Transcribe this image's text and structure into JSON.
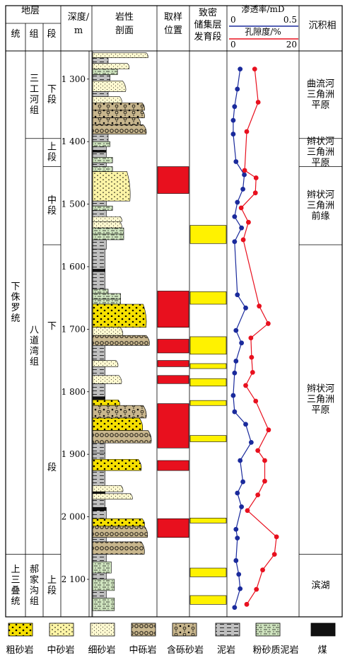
{
  "headers": {
    "stratum": "地层",
    "system": "统",
    "group": "组",
    "member": "段",
    "depth_line1": "深度/",
    "depth_line2": "m",
    "lithology_line1": "岩性",
    "lithology_line2": "剖面",
    "sampling_line1": "取样",
    "sampling_line2": "位置",
    "reservoir_line1": "致密",
    "reservoir_line2": "储集层",
    "reservoir_line3": "发育段",
    "permeability_label": "渗透率/mD",
    "permeability_min": "0",
    "permeability_max": "0.5",
    "porosity_label": "孔隙度/%",
    "porosity_min": "0",
    "porosity_max": "20",
    "facies": "沉积相"
  },
  "systems": [
    {
      "label": "下侏罗统",
      "top": 1255,
      "bottom": 2060
    },
    {
      "label": "上三叠统",
      "top": 2060,
      "bottom": 2160
    }
  ],
  "groups": [
    {
      "label": "三工河组",
      "top": 1255,
      "bottom": 1395
    },
    {
      "label": "八道湾组",
      "top": 1395,
      "bottom": 2060
    },
    {
      "label": "郝家沟组",
      "top": 2060,
      "bottom": 2160
    }
  ],
  "members": [
    {
      "label": "下段",
      "top": 1255,
      "bottom": 1395
    },
    {
      "label": "上段",
      "top": 1395,
      "bottom": 1440
    },
    {
      "label": "中段",
      "top": 1440,
      "bottom": 1565
    },
    {
      "label": "下段",
      "top": 1565,
      "bottom": 2060
    },
    {
      "label": "上段",
      "top": 2060,
      "bottom": 2160
    }
  ],
  "depth_ticks": [
    "1 300",
    "1 400",
    "1 500",
    "1 600",
    "1 700",
    "1 800",
    "1 900",
    "2 000",
    "2 100"
  ],
  "depth_tick_values": [
    1300,
    1400,
    1500,
    1600,
    1700,
    1800,
    1900,
    2000,
    2100
  ],
  "facies": [
    {
      "label": "曲流河三角洲平原",
      "top": 1255,
      "bottom": 1395
    },
    {
      "label": "辫状河三角洲平原",
      "top": 1395,
      "bottom": 1440
    },
    {
      "label": "辫状河三角洲前缘",
      "top": 1440,
      "bottom": 1565
    },
    {
      "label": "辫状河三角洲平原",
      "top": 1565,
      "bottom": 2060
    },
    {
      "label": "滨湖",
      "top": 2060,
      "bottom": 2160
    }
  ],
  "sampling_intervals": [
    [
      1440,
      1483
    ],
    [
      1639,
      1697
    ],
    [
      1716,
      1738
    ],
    [
      1750,
      1760
    ],
    [
      1774,
      1787
    ],
    [
      1819,
      1890
    ],
    [
      1910,
      1926
    ],
    [
      2003,
      2033
    ]
  ],
  "reservoir_intervals": [
    [
      1534,
      1563
    ],
    [
      1640,
      1660
    ],
    [
      1712,
      1740
    ],
    [
      1755,
      1763
    ],
    [
      1779,
      1791
    ],
    [
      1814,
      1822
    ],
    [
      1870,
      1880
    ],
    [
      2002,
      2010
    ],
    [
      2082,
      2096
    ],
    [
      2126,
      2140
    ]
  ],
  "lithology_beds": [
    {
      "type": "fine",
      "top": 1258,
      "bottom": 1266,
      "width": 0.9
    },
    {
      "type": "mud",
      "top": 1266,
      "bottom": 1275,
      "width": 0.25
    },
    {
      "type": "fine",
      "top": 1275,
      "bottom": 1284,
      "width": 0.6
    },
    {
      "type": "silt",
      "top": 1284,
      "bottom": 1293,
      "width": 0.4
    },
    {
      "type": "mud",
      "top": 1293,
      "bottom": 1303,
      "width": 0.28
    },
    {
      "type": "fine",
      "top": 1303,
      "bottom": 1320,
      "width": 0.55
    },
    {
      "type": "mud",
      "top": 1320,
      "bottom": 1328,
      "width": 0.25
    },
    {
      "type": "fine",
      "top": 1328,
      "bottom": 1338,
      "width": 0.48
    },
    {
      "type": "pebbly",
      "top": 1338,
      "bottom": 1350,
      "width": 0.85
    },
    {
      "type": "pebbly",
      "top": 1350,
      "bottom": 1362,
      "width": 0.85
    },
    {
      "type": "pebbly",
      "top": 1362,
      "bottom": 1373,
      "width": 0.78
    },
    {
      "type": "conglom",
      "top": 1373,
      "bottom": 1388,
      "width": 0.88
    },
    {
      "type": "mud",
      "top": 1388,
      "bottom": 1400,
      "width": 0.25
    },
    {
      "type": "silt",
      "top": 1400,
      "bottom": 1408,
      "width": 0.28
    },
    {
      "type": "mud",
      "top": 1408,
      "bottom": 1414,
      "width": 0.22
    },
    {
      "type": "coal",
      "top": 1414,
      "bottom": 1417,
      "width": 0.22
    },
    {
      "type": "mud",
      "top": 1417,
      "bottom": 1425,
      "width": 0.22
    },
    {
      "type": "silt",
      "top": 1425,
      "bottom": 1434,
      "width": 0.32
    },
    {
      "type": "mud",
      "top": 1434,
      "bottom": 1440,
      "width": 0.22
    },
    {
      "type": "silt",
      "top": 1440,
      "bottom": 1448,
      "width": 0.32
    },
    {
      "type": "medium",
      "top": 1448,
      "bottom": 1495,
      "width": 0.62
    },
    {
      "type": "mud",
      "top": 1495,
      "bottom": 1503,
      "width": 0.22
    },
    {
      "type": "silt",
      "top": 1503,
      "bottom": 1510,
      "width": 0.32
    },
    {
      "type": "mud",
      "top": 1510,
      "bottom": 1520,
      "width": 0.22
    },
    {
      "type": "fine",
      "top": 1520,
      "bottom": 1528,
      "width": 0.48
    },
    {
      "type": "fine",
      "top": 1528,
      "bottom": 1538,
      "width": 0.48
    },
    {
      "type": "silt",
      "top": 1538,
      "bottom": 1548,
      "width": 0.5
    },
    {
      "type": "silt",
      "top": 1548,
      "bottom": 1557,
      "width": 0.5
    },
    {
      "type": "mud",
      "top": 1557,
      "bottom": 1572,
      "width": 0.22
    },
    {
      "type": "mud",
      "top": 1572,
      "bottom": 1604,
      "width": 0.2
    },
    {
      "type": "coal",
      "top": 1604,
      "bottom": 1608,
      "width": 0.2
    },
    {
      "type": "mud",
      "top": 1608,
      "bottom": 1636,
      "width": 0.2
    },
    {
      "type": "silt",
      "top": 1636,
      "bottom": 1643,
      "width": 0.25
    },
    {
      "type": "silt",
      "top": 1643,
      "bottom": 1652,
      "width": 0.45
    },
    {
      "type": "silt",
      "top": 1652,
      "bottom": 1660,
      "width": 0.45
    },
    {
      "type": "coarse",
      "top": 1660,
      "bottom": 1697,
      "width": 0.88
    },
    {
      "type": "fine",
      "top": 1697,
      "bottom": 1710,
      "width": 0.5
    },
    {
      "type": "conglom",
      "top": 1710,
      "bottom": 1726,
      "width": 0.93
    },
    {
      "type": "mud",
      "top": 1726,
      "bottom": 1750,
      "width": 0.2
    },
    {
      "type": "fine",
      "top": 1750,
      "bottom": 1760,
      "width": 0.42
    },
    {
      "type": "mud",
      "top": 1760,
      "bottom": 1774,
      "width": 0.2
    },
    {
      "type": "fine",
      "top": 1774,
      "bottom": 1787,
      "width": 0.48
    },
    {
      "type": "mud",
      "top": 1787,
      "bottom": 1808,
      "width": 0.2
    },
    {
      "type": "coal",
      "top": 1808,
      "bottom": 1813,
      "width": 0.2
    },
    {
      "type": "coarse",
      "top": 1813,
      "bottom": 1822,
      "width": 0.45
    },
    {
      "type": "pebbly",
      "top": 1822,
      "bottom": 1842,
      "width": 0.88
    },
    {
      "type": "coarse",
      "top": 1842,
      "bottom": 1862,
      "width": 0.82
    },
    {
      "type": "conglom",
      "top": 1862,
      "bottom": 1882,
      "width": 0.96
    },
    {
      "type": "mud",
      "top": 1882,
      "bottom": 1898,
      "width": 0.2
    },
    {
      "type": "mud",
      "top": 1898,
      "bottom": 1908,
      "width": 0.2
    },
    {
      "type": "coarse",
      "top": 1908,
      "bottom": 1926,
      "width": 0.8
    },
    {
      "type": "mud",
      "top": 1926,
      "bottom": 1950,
      "width": 0.2
    },
    {
      "type": "fine",
      "top": 1950,
      "bottom": 1960,
      "width": 0.5
    },
    {
      "type": "coal",
      "top": 1960,
      "bottom": 1963,
      "width": 0.2
    },
    {
      "type": "fine",
      "top": 1963,
      "bottom": 1972,
      "width": 0.65
    },
    {
      "type": "mud",
      "top": 1972,
      "bottom": 1985,
      "width": 0.2
    },
    {
      "type": "coal",
      "top": 1985,
      "bottom": 1990,
      "width": 0.22
    },
    {
      "type": "mud",
      "top": 1990,
      "bottom": 2003,
      "width": 0.22
    },
    {
      "type": "coarse",
      "top": 2003,
      "bottom": 2015,
      "width": 0.85
    },
    {
      "type": "conglom",
      "top": 2015,
      "bottom": 2033,
      "width": 0.9
    },
    {
      "type": "mud",
      "top": 2033,
      "bottom": 2040,
      "width": 0.22
    },
    {
      "type": "conglom",
      "top": 2040,
      "bottom": 2060,
      "width": 0.85
    },
    {
      "type": "mud",
      "top": 2060,
      "bottom": 2072,
      "width": 0.22
    },
    {
      "type": "silt",
      "top": 2072,
      "bottom": 2090,
      "width": 0.3
    },
    {
      "type": "mud",
      "top": 2090,
      "bottom": 2100,
      "width": 0.22
    },
    {
      "type": "silt",
      "top": 2100,
      "bottom": 2118,
      "width": 0.35
    },
    {
      "type": "mud",
      "top": 2118,
      "bottom": 2130,
      "width": 0.22
    },
    {
      "type": "silt",
      "top": 2130,
      "bottom": 2150,
      "width": 0.35
    }
  ],
  "chart_data": {
    "type": "line",
    "y_axis": "depth (m)",
    "ylim": [
      1255,
      2160
    ],
    "series": [
      {
        "name": "渗透率/mD",
        "color": "#1a2a9c",
        "xlim": [
          0,
          0.5
        ],
        "points": [
          [
            0.08,
            1284
          ],
          [
            0.06,
            1316
          ],
          [
            0.04,
            1344
          ],
          [
            0.03,
            1366
          ],
          [
            0.03,
            1388
          ],
          [
            0.05,
            1432
          ],
          [
            0.11,
            1453
          ],
          [
            0.1,
            1476
          ],
          [
            0.06,
            1497
          ],
          [
            0.04,
            1520
          ],
          [
            0.09,
            1538
          ],
          [
            0.04,
            1560
          ],
          [
            0.06,
            1645
          ],
          [
            0.12,
            1666
          ],
          [
            0.05,
            1702
          ],
          [
            0.09,
            1722
          ],
          [
            0.05,
            1751
          ],
          [
            0.04,
            1770
          ],
          [
            0.03,
            1806
          ],
          [
            0.04,
            1832
          ],
          [
            0.12,
            1852
          ],
          [
            0.16,
            1881
          ],
          [
            0.08,
            1910
          ],
          [
            0.1,
            1944
          ],
          [
            0.06,
            1962
          ],
          [
            0.09,
            1984
          ],
          [
            0.05,
            2020
          ],
          [
            0.06,
            2034
          ],
          [
            0.05,
            2070
          ],
          [
            0.07,
            2092
          ],
          [
            0.08,
            2115
          ],
          [
            0.04,
            2145
          ]
        ]
      },
      {
        "name": "孔隙度/%",
        "color": "#e8101e",
        "xlim": [
          0,
          20
        ],
        "points": [
          [
            7.4,
            1284
          ],
          [
            8.4,
            1337
          ],
          [
            5.1,
            1384
          ],
          [
            4.5,
            1446
          ],
          [
            7.8,
            1458
          ],
          [
            7.6,
            1482
          ],
          [
            3.5,
            1506
          ],
          [
            5.6,
            1529
          ],
          [
            4.1,
            1557
          ],
          [
            8.7,
            1663
          ],
          [
            11.3,
            1691
          ],
          [
            6.3,
            1714
          ],
          [
            6.5,
            1745
          ],
          [
            6.8,
            1769
          ],
          [
            4.8,
            1790
          ],
          [
            7.7,
            1815
          ],
          [
            11.4,
            1861
          ],
          [
            8.3,
            1894
          ],
          [
            10.3,
            1910
          ],
          [
            10.3,
            1943
          ],
          [
            8.3,
            1965
          ],
          [
            5.3,
            1990
          ],
          [
            13.7,
            2032
          ],
          [
            13.1,
            2060
          ],
          [
            9.7,
            2085
          ],
          [
            7.9,
            2116
          ],
          [
            5.1,
            2140
          ]
        ]
      }
    ]
  },
  "legend": [
    {
      "type": "coarse",
      "label": "粗砂岩"
    },
    {
      "type": "medium",
      "label": "中砂岩"
    },
    {
      "type": "fine",
      "label": "细砂岩"
    },
    {
      "type": "conglom",
      "label": "中砾岩"
    },
    {
      "type": "pebbly",
      "label": "含砾砂岩"
    },
    {
      "type": "mud",
      "label": "泥岩"
    },
    {
      "type": "silt",
      "label": "粉砂质泥岩"
    },
    {
      "type": "coal",
      "label": "煤"
    }
  ],
  "colors": {
    "coarse": "#f6e000",
    "medium": "#fcf4a6",
    "fine": "#fdf8d0",
    "conglom": "#c8b68d",
    "pebbly": "#c8b68d",
    "mud": "#bfbfbf",
    "silt": "#cfe4bf",
    "coal": "#111111",
    "sample": "#e8101e",
    "reservoir": "#fff200",
    "perm": "#1a2a9c",
    "poro": "#e8101e"
  }
}
